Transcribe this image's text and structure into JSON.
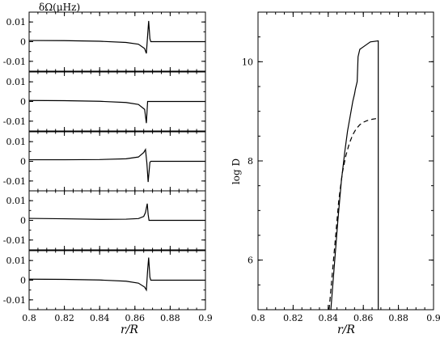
{
  "chart_data": [
    {
      "type": "line",
      "panel": "left",
      "ylabel": "δΩ(μHz)",
      "xlabel": "r/R",
      "xlim": [
        0.8,
        0.9
      ],
      "ylim": [
        -0.015,
        0.015
      ],
      "x_ticks": [
        "0.8",
        "0.82",
        "0.84",
        "0.86",
        "0.88",
        "0.9"
      ],
      "y_ticks": [
        "0.01",
        "0",
        "-0.01"
      ],
      "y_tick_values": [
        0.01,
        0,
        -0.01
      ],
      "subplots": [
        {
          "series": [
            {
              "x": [
                0.8,
                0.82,
                0.84,
                0.855,
                0.862,
                0.8655,
                0.8665,
                0.8672,
                0.8678,
                0.8685,
                0.869,
                0.87,
                0.9
              ],
              "y": [
                0.0006,
                0.0005,
                0.0002,
                -0.0004,
                -0.0013,
                -0.0035,
                -0.006,
                0.003,
                0.0105,
                0.0015,
                0.0,
                0.0,
                0.0
              ]
            }
          ]
        },
        {
          "series": [
            {
              "x": [
                0.8,
                0.82,
                0.84,
                0.855,
                0.862,
                0.8655,
                0.8665,
                0.8672,
                0.8678,
                0.8685,
                0.869,
                0.9
              ],
              "y": [
                0.0005,
                0.0004,
                0.0001,
                -0.0005,
                -0.0015,
                -0.004,
                -0.011,
                0.0,
                0.0,
                0.0,
                0.0,
                0.0
              ]
            }
          ]
        },
        {
          "series": [
            {
              "x": [
                0.8,
                0.82,
                0.84,
                0.855,
                0.862,
                0.865,
                0.866,
                0.8668,
                0.8675,
                0.8685,
                0.869,
                0.9
              ],
              "y": [
                0.0008,
                0.0008,
                0.0009,
                0.0013,
                0.0022,
                0.0045,
                0.006,
                -0.001,
                -0.0105,
                -0.0005,
                0.0,
                0.0
              ]
            }
          ]
        },
        {
          "series": [
            {
              "x": [
                0.8,
                0.82,
                0.84,
                0.855,
                0.862,
                0.865,
                0.866,
                0.867,
                0.8675,
                0.868,
                0.869,
                0.9
              ],
              "y": [
                0.001,
                0.0008,
                0.0005,
                0.0006,
                0.0009,
                0.002,
                0.004,
                0.0085,
                0.003,
                0.0,
                0.0,
                0.0
              ]
            }
          ]
        },
        {
          "series": [
            {
              "x": [
                0.8,
                0.82,
                0.84,
                0.855,
                0.862,
                0.8655,
                0.8665,
                0.8672,
                0.8678,
                0.8685,
                0.869,
                0.9
              ],
              "y": [
                0.0005,
                0.0004,
                0.0001,
                -0.0005,
                -0.0015,
                -0.0035,
                -0.005,
                0.005,
                0.0115,
                0.0015,
                0.0,
                0.0
              ]
            }
          ]
        }
      ]
    },
    {
      "type": "line",
      "panel": "right",
      "ylabel": "log D",
      "xlabel": "r/R",
      "xlim": [
        0.8,
        0.9
      ],
      "ylim": [
        5.0,
        11.0
      ],
      "x_ticks": [
        "0.8",
        "0.82",
        "0.84",
        "0.86",
        "0.88",
        "0.9"
      ],
      "y_ticks": [
        "6",
        "8",
        "10"
      ],
      "y_tick_values": [
        6,
        8,
        10
      ],
      "series": [
        {
          "style": "solid",
          "x": [
            0.8415,
            0.8435,
            0.8455,
            0.8475,
            0.8495,
            0.851,
            0.8525,
            0.854,
            0.855,
            0.8555,
            0.8565,
            0.857,
            0.858,
            0.86,
            0.864,
            0.8685,
            0.8685
          ],
          "y": [
            5.0,
            5.9,
            6.8,
            7.6,
            8.2,
            8.6,
            8.9,
            9.2,
            9.35,
            9.45,
            9.6,
            10.1,
            10.25,
            10.3,
            10.4,
            10.42,
            5.0
          ]
        },
        {
          "style": "dashed",
          "x": [
            0.8405,
            0.842,
            0.844,
            0.846,
            0.848,
            0.85,
            0.852,
            0.854,
            0.856,
            0.858,
            0.86,
            0.862,
            0.865,
            0.8685
          ],
          "y": [
            5.0,
            5.6,
            6.4,
            7.2,
            7.75,
            8.1,
            8.35,
            8.53,
            8.65,
            8.73,
            8.78,
            8.81,
            8.84,
            8.86
          ]
        }
      ]
    }
  ]
}
